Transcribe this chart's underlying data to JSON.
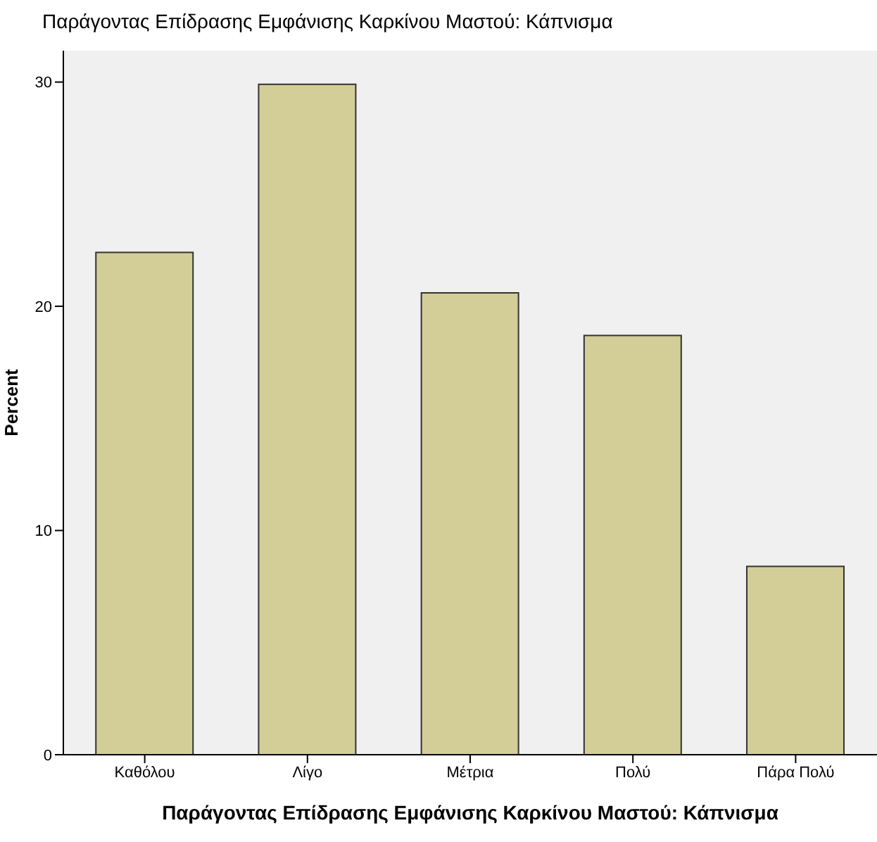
{
  "chart_data": {
    "type": "bar",
    "title": "Παράγοντας Επίδρασης Εμφάνισης Καρκίνου Μαστού: Κάπνισμα",
    "xlabel": "Παράγοντας Επίδρασης Εμφάνισης Καρκίνου Μαστού: Κάπνισμα",
    "ylabel": "Percent",
    "categories": [
      "Καθόλου",
      "Λίγο",
      "Μέτρια",
      "Πολύ",
      "Πάρα Πολύ"
    ],
    "values": [
      22.4,
      29.9,
      20.6,
      18.7,
      8.4
    ],
    "color": "#d3ce98",
    "ylim": [
      0,
      31.4
    ],
    "yticks": [
      0,
      10,
      20,
      30
    ],
    "grid": false
  }
}
